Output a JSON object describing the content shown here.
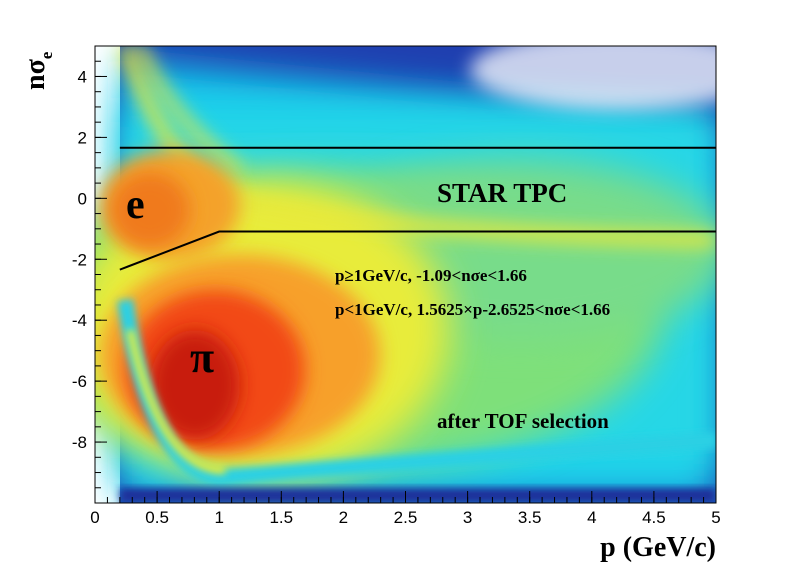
{
  "chart_data": {
    "type": "heatmap",
    "xlabel": "p (GeV/c)",
    "ylabel": "nσe",
    "xlim": [
      0,
      5
    ],
    "ylim": [
      -10,
      5
    ],
    "x_ticks": [
      "0",
      "0.5",
      "1",
      "1.5",
      "2",
      "2.5",
      "3",
      "3.5",
      "4",
      "4.5",
      "5"
    ],
    "y_ticks": [
      "-8",
      "-6",
      "-4",
      "-2",
      "0",
      "2",
      "4"
    ],
    "colormap": "rainbow (blue → cyan → green → yellow → orange → red)",
    "bands": [
      {
        "name": "e",
        "label": "e",
        "center_nsigma": 0,
        "p_range": [
          0.2,
          1.5
        ]
      },
      {
        "name": "π",
        "label": "π",
        "center_nsigma": -6,
        "p_range": [
          0.3,
          2.5
        ]
      }
    ],
    "cuts": [
      {
        "name": "upper cut",
        "points": [
          [
            0.2,
            1.66
          ],
          [
            5,
            1.66
          ]
        ]
      },
      {
        "name": "lower cut",
        "points": [
          [
            0.2,
            -2.34
          ],
          [
            1.0,
            -1.09
          ],
          [
            5,
            -1.09
          ]
        ]
      }
    ],
    "annotations": {
      "experiment": "STAR TPC",
      "cut_high_p": "p≥1GeV/c,  -1.09<nσe<1.66",
      "cut_low_p": "p<1GeV/c,  1.5625×p-2.6525<nσe<1.66",
      "selection": "after TOF selection"
    },
    "colors": {
      "experiment_label": "#e0201b",
      "cut_lines": "#000000"
    }
  }
}
